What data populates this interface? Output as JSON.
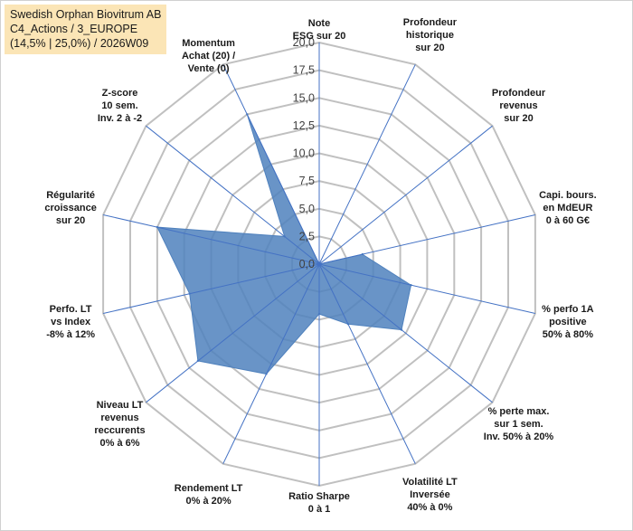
{
  "header": {
    "line1": "Swedish Orphan Biovitrum AB",
    "line2": "C4_Actions / 3_EUROPE",
    "line3": "(14,5% | 25,0%) / 2026W09"
  },
  "colors": {
    "fill": "#4f81bd",
    "grid": "#c0c0c0",
    "spoke": "#4472c4",
    "title_bg": "#fbe5b6"
  },
  "chart_data": {
    "type": "radar",
    "title": "Swedish Orphan Biovitrum AB",
    "rmin": 0,
    "rmax": 20,
    "step": 2.5,
    "tick_labels": [
      "0,0",
      "2,5",
      "5,0",
      "7,5",
      "10,0",
      "12,5",
      "15,0",
      "17,5",
      "20,0"
    ],
    "axes": [
      {
        "label": [
          "Note",
          "ESG sur 20"
        ],
        "value": 0
      },
      {
        "label": [
          "Profondeur",
          "historique",
          "sur 20"
        ],
        "value": 0
      },
      {
        "label": [
          "Profondeur",
          "revenus",
          "sur 20"
        ],
        "value": 0
      },
      {
        "label": [
          "Capi. bours.",
          "en MdEUR",
          "0 à 60 G€"
        ],
        "value": 4
      },
      {
        "label": [
          "% perfo 1A",
          "positive",
          "50% à 80%"
        ],
        "value": 8.5
      },
      {
        "label": [
          "% perte max.",
          "sur 1 sem.",
          "Inv. 50% à 20%"
        ],
        "value": 9.5
      },
      {
        "label": [
          "Volatilité LT",
          "Inversée",
          "40% à 0%"
        ],
        "value": 6
      },
      {
        "label": [
          "Ratio Sharpe",
          "0 à 1"
        ],
        "value": 4.5
      },
      {
        "label": [
          "Rendement LT",
          "0% à 20%"
        ],
        "value": 11
      },
      {
        "label": [
          "Niveau LT",
          "revenus",
          "reccurents",
          "0% à 6%"
        ],
        "value": 14
      },
      {
        "label": [
          "Perfo. LT",
          "vs Index",
          "-8% à 12%"
        ],
        "value": 12
      },
      {
        "label": [
          "Régularité",
          "croissance",
          "sur 20"
        ],
        "value": 15
      },
      {
        "label": [
          "Z-score",
          "10 sem.",
          "Inv. 2 à -2"
        ],
        "value": 4
      },
      {
        "label": [
          "Momentum",
          "Achat (20) /",
          "Vente (0)"
        ],
        "value": 15
      }
    ]
  }
}
